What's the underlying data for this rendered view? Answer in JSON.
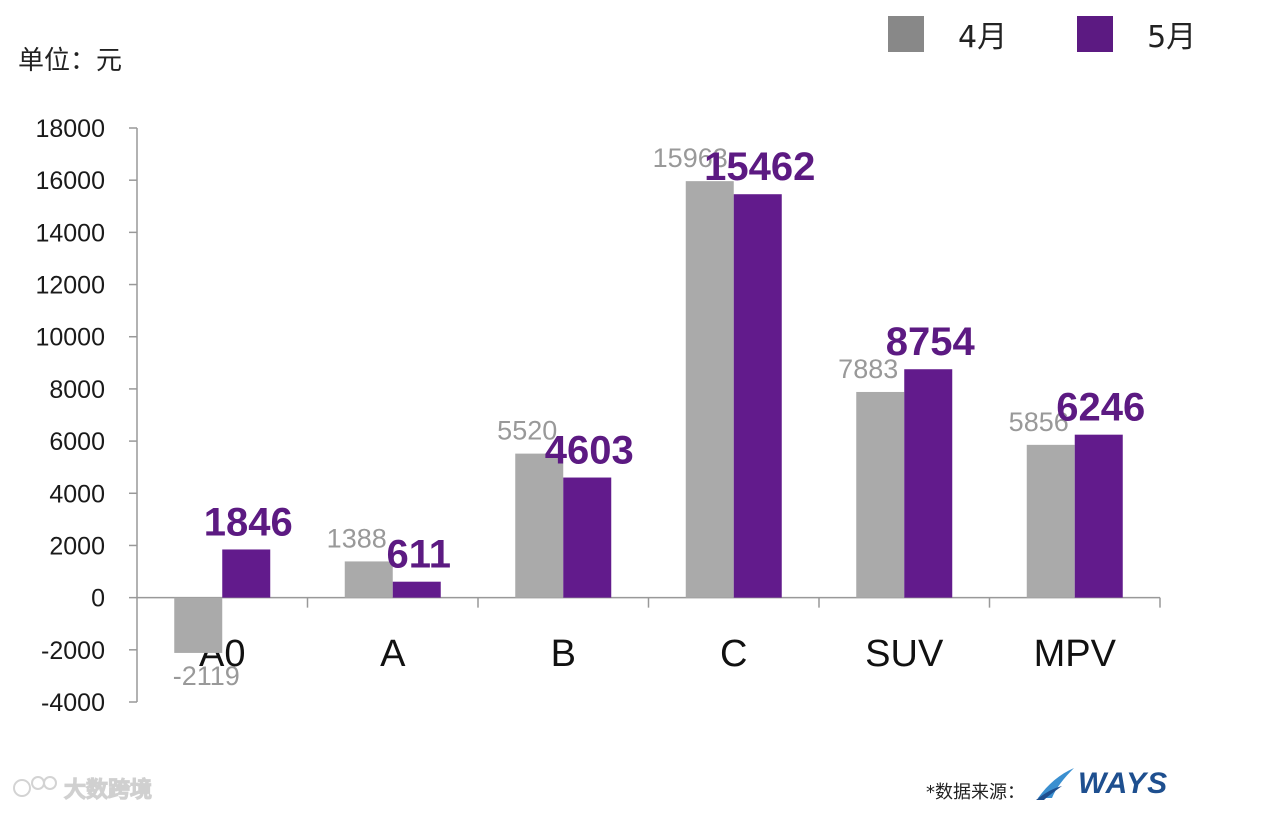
{
  "unit_label": "单位：元",
  "legend": [
    {
      "label": "4月",
      "color": "#888888"
    },
    {
      "label": "5月",
      "color": "#5c1a82"
    }
  ],
  "footer": {
    "source_label": "*数据来源：",
    "logo_text": "WAYS"
  },
  "watermark": {
    "text": "大数跨境"
  },
  "chart_data": {
    "type": "bar",
    "categories": [
      "A0",
      "A",
      "B",
      "C",
      "SUV",
      "MPV"
    ],
    "series": [
      {
        "name": "4月",
        "color": "#aaaaaa",
        "values": [
          -2119,
          1388,
          5520,
          15963,
          7883,
          5856
        ]
      },
      {
        "name": "5月",
        "color": "#621b8c",
        "values": [
          1846,
          611,
          4603,
          15462,
          8754,
          6246
        ]
      }
    ],
    "ylim": [
      -4000,
      18000
    ],
    "yticks": [
      18000,
      16000,
      14000,
      12000,
      10000,
      8000,
      6000,
      4000,
      2000,
      0,
      -2000,
      -4000
    ],
    "ylabel": "单位：元",
    "grid": false,
    "legend_position": "top-right"
  }
}
